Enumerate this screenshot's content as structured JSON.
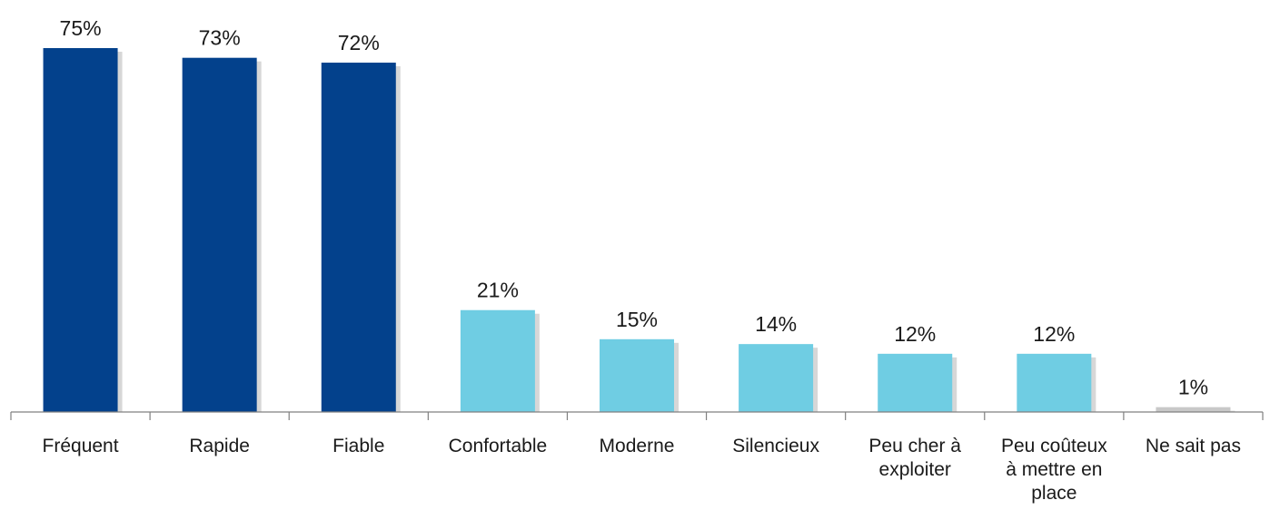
{
  "chart_data": {
    "type": "bar",
    "title": "",
    "xlabel": "",
    "ylabel": "",
    "ylim": [
      0,
      75
    ],
    "grid": false,
    "legend": "none",
    "categories": [
      "Fréquent",
      "Rapide",
      "Fiable",
      "Confortable",
      "Moderne",
      "Silencieux",
      "Peu cher à exploiter",
      "Peu coûteux à mettre en place",
      "Ne sait pas"
    ],
    "category_lines": [
      [
        "Fréquent"
      ],
      [
        "Rapide"
      ],
      [
        "Fiable"
      ],
      [
        "Confortable"
      ],
      [
        "Moderne"
      ],
      [
        "Silencieux"
      ],
      [
        "Peu cher à",
        "exploiter"
      ],
      [
        "Peu coûteux",
        "à mettre en",
        "place"
      ],
      [
        "Ne sait pas"
      ]
    ],
    "values": [
      75,
      73,
      72,
      21,
      15,
      14,
      12,
      12,
      1
    ],
    "value_labels": [
      "75%",
      "73%",
      "72%",
      "21%",
      "15%",
      "14%",
      "12%",
      "12%",
      "1%"
    ],
    "bar_colors": [
      "#03418c",
      "#03418c",
      "#03418c",
      "#6fcde3",
      "#6fcde3",
      "#6fcde3",
      "#6fcde3",
      "#6fcde3",
      "#c8c8c8"
    ]
  }
}
